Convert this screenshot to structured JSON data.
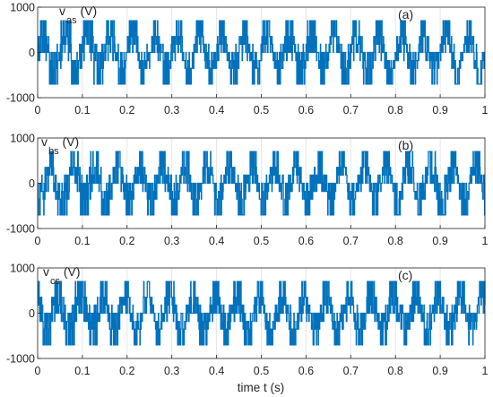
{
  "chart_data": [
    {
      "type": "line",
      "panel": "(a)",
      "ylabel_annotation": {
        "base": "v",
        "sub": "as",
        "unit": "(V)"
      },
      "x": {
        "range": [
          0,
          1
        ],
        "ticks": [
          "0",
          "0.1",
          "0.2",
          "0.3",
          "0.4",
          "0.5",
          "0.6",
          "0.7",
          "0.8",
          "0.9",
          "1"
        ]
      },
      "y": {
        "range": [
          -1000,
          1000
        ],
        "ticks": [
          "1000",
          "0",
          "-1000"
        ]
      },
      "grid": true,
      "series": [
        {
          "color": "#0072bd",
          "signal": "multilevel PWM phase voltage",
          "levels": [
            -700,
            -350,
            -180,
            0,
            180,
            350,
            700
          ],
          "fundamental_hz": 20,
          "phase_deg": 0
        }
      ]
    },
    {
      "type": "line",
      "panel": "(b)",
      "ylabel_annotation": {
        "base": "v",
        "sub": "bs",
        "unit": "(V)"
      },
      "x": {
        "range": [
          0,
          1
        ],
        "ticks": [
          "0",
          "0.1",
          "0.2",
          "0.3",
          "0.4",
          "0.5",
          "0.6",
          "0.7",
          "0.8",
          "0.9",
          "1"
        ]
      },
      "y": {
        "range": [
          -1000,
          1000
        ],
        "ticks": [
          "1000",
          "0",
          "-1000"
        ]
      },
      "grid": true,
      "series": [
        {
          "color": "#0072bd",
          "signal": "multilevel PWM phase voltage",
          "levels": [
            -700,
            -350,
            -180,
            0,
            180,
            350,
            700
          ],
          "fundamental_hz": 20,
          "phase_deg": -120
        }
      ]
    },
    {
      "type": "line",
      "panel": "(c)",
      "ylabel_annotation": {
        "base": "v",
        "sub": "cs",
        "unit": "(V)"
      },
      "x": {
        "range": [
          0,
          1
        ],
        "ticks": [
          "0",
          "0.1",
          "0.2",
          "0.3",
          "0.4",
          "0.5",
          "0.6",
          "0.7",
          "0.8",
          "0.9",
          "1"
        ]
      },
      "y": {
        "range": [
          -1000,
          1000
        ],
        "ticks": [
          "1000",
          "0",
          "-1000"
        ]
      },
      "grid": true,
      "series": [
        {
          "color": "#0072bd",
          "signal": "multilevel PWM phase voltage",
          "levels": [
            -700,
            -350,
            -180,
            0,
            180,
            350,
            700
          ],
          "fundamental_hz": 20,
          "phase_deg": 120
        }
      ]
    }
  ],
  "xlabel": "time t (s)"
}
